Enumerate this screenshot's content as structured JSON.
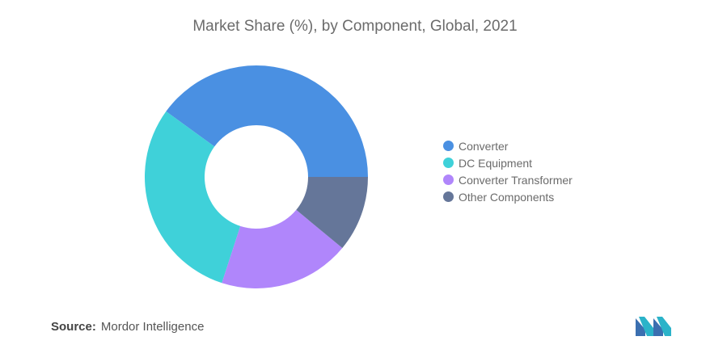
{
  "chart_data": {
    "type": "pie",
    "donut": true,
    "title": "Market Share (%), by Component, Global, 2021",
    "categories": [
      "Converter",
      "DC Equipment",
      "Converter Transformer",
      "Other Components"
    ],
    "values": [
      40,
      30,
      19,
      11
    ],
    "colors": [
      "#4a90e2",
      "#3fd1d9",
      "#b086fb",
      "#657699"
    ],
    "legend_position": "right"
  },
  "source": {
    "label": "Source:",
    "text": "Mordor Intelligence"
  },
  "logo": {
    "icon": "mordor-intelligence-logo-icon"
  }
}
